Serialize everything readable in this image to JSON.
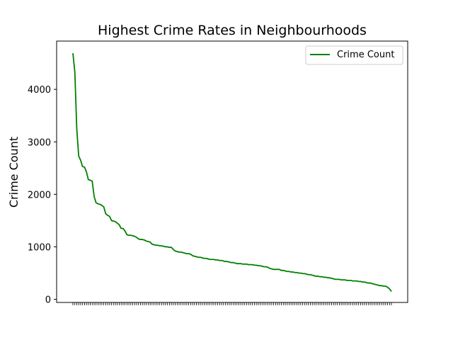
{
  "chart_data": {
    "type": "line",
    "title": "Highest Crime Rates in Neighbourhoods",
    "xlabel": "",
    "ylabel": "Crime Count",
    "ylim": [
      -60,
      4920
    ],
    "yticks": [
      0,
      1000,
      2000,
      3000,
      4000
    ],
    "grid": false,
    "legend_position": "top-right",
    "line_color": "#008000",
    "series": [
      {
        "name": "Crime Count",
        "values": [
          4690,
          4330,
          3250,
          2730,
          2650,
          2530,
          2520,
          2430,
          2280,
          2270,
          2250,
          1960,
          1840,
          1820,
          1810,
          1790,
          1760,
          1630,
          1600,
          1580,
          1500,
          1490,
          1480,
          1450,
          1420,
          1350,
          1350,
          1300,
          1230,
          1220,
          1220,
          1210,
          1200,
          1180,
          1150,
          1140,
          1140,
          1130,
          1110,
          1100,
          1090,
          1050,
          1040,
          1030,
          1030,
          1020,
          1020,
          1010,
          1000,
          1000,
          990,
          990,
          950,
          920,
          910,
          900,
          900,
          890,
          880,
          870,
          870,
          860,
          830,
          820,
          810,
          800,
          800,
          790,
          780,
          780,
          770,
          760,
          760,
          760,
          750,
          750,
          740,
          740,
          730,
          720,
          720,
          710,
          700,
          700,
          690,
          680,
          680,
          680,
          670,
          670,
          670,
          660,
          660,
          660,
          650,
          650,
          640,
          640,
          630,
          620,
          620,
          610,
          590,
          580,
          570,
          570,
          570,
          570,
          550,
          550,
          540,
          530,
          530,
          520,
          520,
          510,
          510,
          500,
          500,
          490,
          490,
          480,
          470,
          470,
          460,
          450,
          440,
          440,
          430,
          430,
          420,
          420,
          410,
          410,
          400,
          390,
          380,
          380,
          380,
          370,
          370,
          370,
          360,
          360,
          360,
          350,
          350,
          350,
          340,
          340,
          330,
          330,
          320,
          310,
          310,
          300,
          290,
          280,
          270,
          260,
          260,
          250,
          250,
          230,
          200,
          150
        ]
      }
    ]
  }
}
